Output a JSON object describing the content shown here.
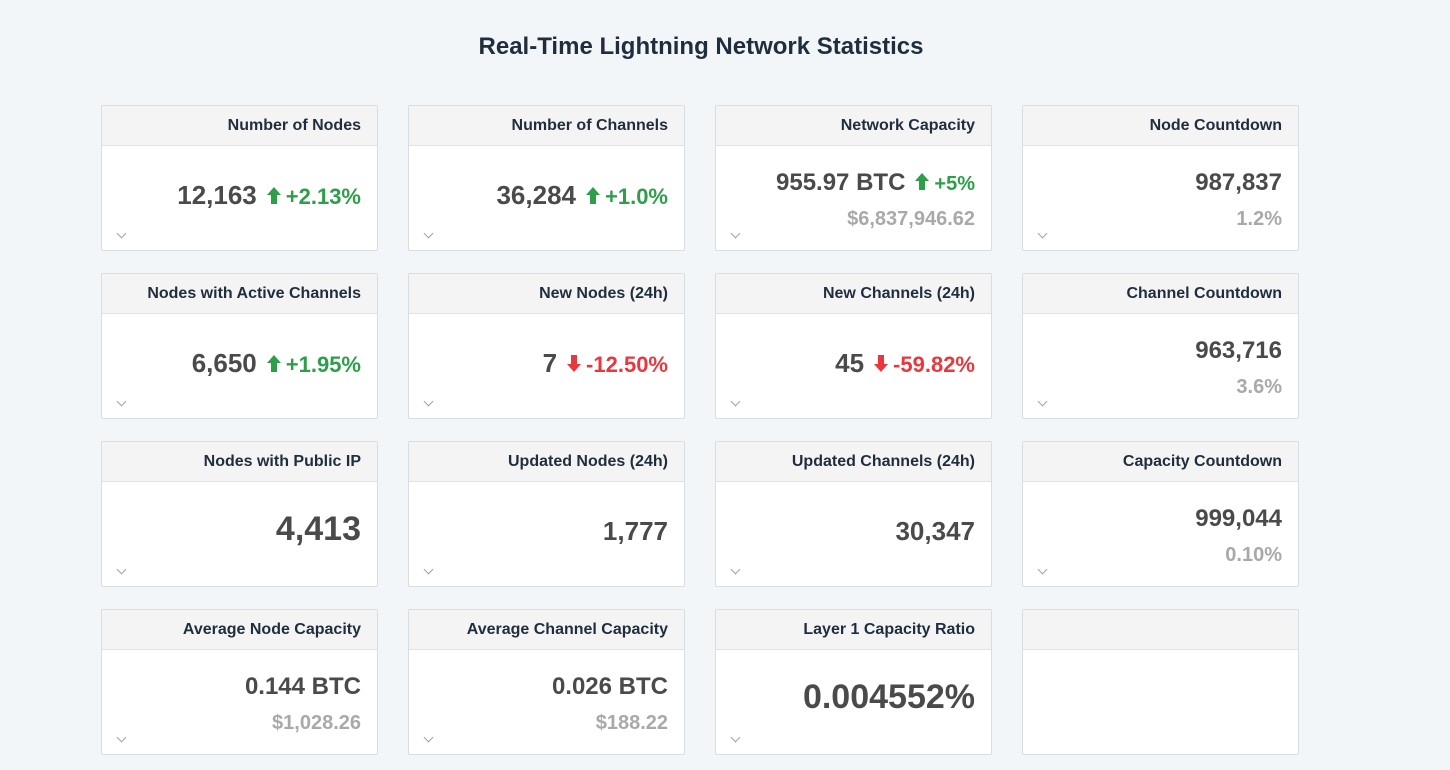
{
  "page": {
    "title": "Real-Time Lightning Network Statistics"
  },
  "cards": {
    "nodes": {
      "title": "Number of Nodes",
      "value": "12,163",
      "delta": "+2.13%",
      "direction": "up"
    },
    "channels": {
      "title": "Number of Channels",
      "value": "36,284",
      "delta": "+1.0%",
      "direction": "up"
    },
    "capacity": {
      "title": "Network Capacity",
      "value": "955.97 BTC",
      "delta": "+5%",
      "direction": "up",
      "sub": "$6,837,946.62"
    },
    "node_countdown": {
      "title": "Node Countdown",
      "value": "987,837",
      "sub": "1.2%"
    },
    "active_nodes": {
      "title": "Nodes with Active Channels",
      "value": "6,650",
      "delta": "+1.95%",
      "direction": "up"
    },
    "new_nodes": {
      "title": "New Nodes (24h)",
      "value": "7",
      "delta": "-12.50%",
      "direction": "down"
    },
    "new_channels": {
      "title": "New Channels (24h)",
      "value": "45",
      "delta": "-59.82%",
      "direction": "down"
    },
    "channel_countdown": {
      "title": "Channel Countdown",
      "value": "963,716",
      "sub": "3.6%"
    },
    "public_ip": {
      "title": "Nodes with Public IP",
      "value": "4,413"
    },
    "updated_nodes": {
      "title": "Updated Nodes (24h)",
      "value": "1,777"
    },
    "updated_channels": {
      "title": "Updated Channels (24h)",
      "value": "30,347"
    },
    "capacity_countdown": {
      "title": "Capacity Countdown",
      "value": "999,044",
      "sub": "0.10%"
    },
    "avg_node_capacity": {
      "title": "Average Node Capacity",
      "value": "0.144 BTC",
      "sub": "$1,028.26"
    },
    "avg_channel_capacity": {
      "title": "Average Channel Capacity",
      "value": "0.026 BTC",
      "sub": "$188.22"
    },
    "layer1_ratio": {
      "title": "Layer 1 Capacity Ratio",
      "value": "0.004552%"
    },
    "empty": {
      "title": ""
    }
  },
  "colors": {
    "up": "#2e9e4a",
    "down": "#e8383d",
    "muted": "#a9a9a9",
    "background": "#f3f6f9"
  },
  "icons": {
    "expand": "chevron-down-icon",
    "increase": "arrow-up-icon",
    "decrease": "arrow-down-icon"
  }
}
